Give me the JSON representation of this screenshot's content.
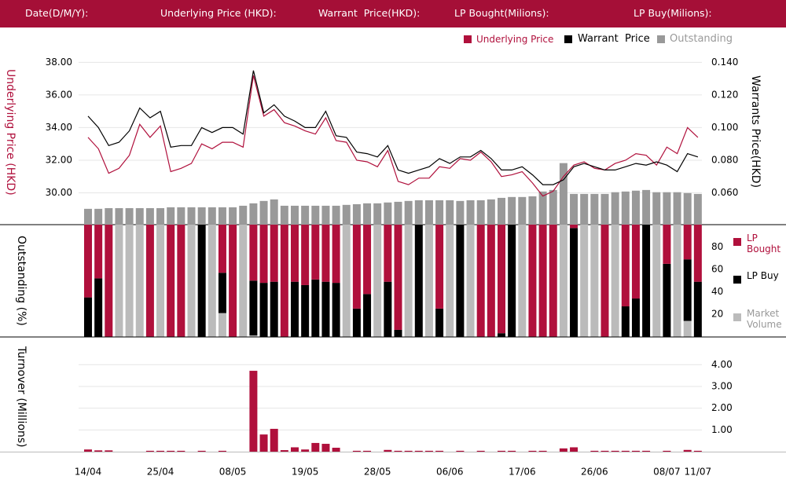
{
  "header": [
    "Date(D/M/Y):",
    "Underlying Price (HKD):",
    "Warrant  Price(HKD):",
    "LP Bought(Milions):",
    "LP Buy(Milions):"
  ],
  "chart_data": [
    {
      "type": "line",
      "ylabel": "Underlying Price (HKD)",
      "y2label": "Warrants  Price(HKD)",
      "grid": true,
      "ylim": [
        28,
        38.5
      ],
      "yticks": [
        {
          "value": 30,
          "label": "30.00"
        },
        {
          "value": 32,
          "label": "32.00"
        },
        {
          "value": 34,
          "label": "34.00"
        },
        {
          "value": 36,
          "label": "36.00"
        },
        {
          "value": 38,
          "label": "38.00"
        }
      ],
      "y2lim": [
        0.04,
        0.145
      ],
      "y2ticks": [
        {
          "value": 0.06,
          "label": "0.060"
        },
        {
          "value": 0.08,
          "label": "0.080"
        },
        {
          "value": 0.1,
          "label": "0.100"
        },
        {
          "value": 0.12,
          "label": "0.120"
        },
        {
          "value": 0.14,
          "label": "0.140"
        }
      ],
      "y3lim": [
        0,
        100
      ],
      "series": [
        {
          "name": "Underlying Price",
          "color": "#b0103c",
          "values": [
            33.4,
            32.7,
            31.2,
            31.5,
            32.3,
            34.2,
            33.4,
            34.1,
            31.3,
            31.5,
            31.8,
            33.0,
            32.7,
            33.1,
            33.1,
            32.8,
            37.2,
            34.7,
            35.1,
            34.3,
            34.1,
            33.8,
            33.6,
            34.6,
            33.2,
            33.1,
            32.0,
            31.9,
            31.6,
            32.6,
            30.7,
            30.5,
            30.9,
            30.9,
            31.6,
            31.5,
            32.1,
            32.0,
            32.5,
            31.9,
            31.0,
            31.1,
            31.3,
            30.6,
            29.8,
            30.1,
            31.0,
            31.7,
            31.9,
            31.5,
            31.4,
            31.8,
            32.0,
            32.4,
            32.3,
            31.7,
            32.8,
            32.4,
            34.0,
            33.4
          ]
        },
        {
          "name": "Warrant  Price",
          "color": "#000000",
          "axis": "y2",
          "values": [
            0.107,
            0.1,
            0.089,
            0.091,
            0.098,
            0.112,
            0.106,
            0.11,
            0.088,
            0.089,
            0.089,
            0.1,
            0.097,
            0.1,
            0.1,
            0.096,
            0.135,
            0.109,
            0.114,
            0.107,
            0.104,
            0.1,
            0.1,
            0.11,
            0.095,
            0.094,
            0.085,
            0.084,
            0.082,
            0.089,
            0.074,
            0.072,
            0.074,
            0.076,
            0.081,
            0.078,
            0.082,
            0.082,
            0.086,
            0.081,
            0.074,
            0.074,
            0.076,
            0.071,
            0.065,
            0.065,
            0.068,
            0.076,
            0.078,
            0.076,
            0.074,
            0.074,
            0.076,
            0.078,
            0.077,
            0.079,
            0.077,
            0.073,
            0.084,
            0.082
          ]
        },
        {
          "name": "Outstanding",
          "color": "#999999",
          "type": "bar",
          "axis": "y3",
          "values": [
            9.7,
            9.7,
            10.1,
            10.1,
            10.1,
            10.1,
            10.1,
            10.1,
            10.6,
            10.6,
            10.6,
            10.6,
            10.6,
            10.6,
            10.6,
            11.5,
            12.9,
            14.3,
            15.2,
            11.5,
            11.5,
            11.5,
            11.5,
            11.5,
            11.5,
            12,
            12.4,
            12.9,
            12.9,
            13.4,
            13.8,
            14.3,
            14.7,
            14.7,
            14.7,
            14.7,
            14.3,
            14.7,
            14.7,
            15.2,
            16.1,
            16.6,
            16.6,
            17,
            19.8,
            20.7,
            36.4,
            18.4,
            18.4,
            18.4,
            18.4,
            19.4,
            19.8,
            20.3,
            20.7,
            19.4,
            19.4,
            19.4,
            18.9,
            18.4
          ]
        }
      ]
    },
    {
      "type": "bar",
      "stacked": true,
      "ylabel": "Outstanding (%)",
      "ylim": [
        0,
        100
      ],
      "yticks": [
        20,
        40,
        60,
        80
      ],
      "series": [
        {
          "name": "LP Bought",
          "color": "#b0103c",
          "values": [
            65,
            48,
            100,
            0,
            0,
            0,
            100,
            0,
            100,
            100,
            0,
            0,
            0,
            43,
            100,
            0,
            50,
            52,
            51,
            100,
            51,
            54,
            49,
            51,
            52,
            0,
            75,
            62,
            0,
            51,
            94,
            0,
            0,
            0,
            75,
            0,
            0,
            0,
            100,
            100,
            97,
            0,
            0,
            100,
            100,
            100,
            0,
            3,
            0,
            0,
            100,
            0,
            73,
            66,
            0,
            0,
            35,
            0,
            31,
            51
          ]
        },
        {
          "name": "LP Buy",
          "color": "#000000",
          "values": [
            35,
            52,
            0,
            0,
            0,
            0,
            0,
            0,
            0,
            0,
            0,
            100,
            0,
            36,
            0,
            0,
            49,
            48,
            49,
            0,
            49,
            46,
            51,
            49,
            48,
            0,
            25,
            38,
            0,
            49,
            6,
            0,
            100,
            0,
            25,
            0,
            100,
            0,
            0,
            0,
            3,
            100,
            0,
            0,
            0,
            0,
            0,
            97,
            0,
            0,
            0,
            0,
            27,
            34,
            100,
            0,
            65,
            0,
            55,
            49
          ]
        },
        {
          "name": "Market Volume",
          "color": "#bbbbbb",
          "values": [
            0,
            0,
            0,
            100,
            100,
            100,
            0,
            100,
            0,
            0,
            100,
            0,
            100,
            21,
            0,
            100,
            1,
            0,
            0,
            0,
            0,
            0,
            0,
            0,
            0,
            100,
            0,
            0,
            100,
            0,
            0,
            100,
            0,
            100,
            0,
            100,
            0,
            100,
            0,
            0,
            0,
            0,
            100,
            0,
            0,
            0,
            100,
            0,
            100,
            100,
            0,
            100,
            0,
            0,
            0,
            100,
            0,
            100,
            14,
            0
          ]
        }
      ]
    },
    {
      "type": "bar",
      "ylabel": "Turnover (Millions)",
      "color": "#b0103c",
      "grid": true,
      "ylim": [
        0,
        4.3
      ],
      "yticks": [
        {
          "value": 1,
          "label": "1.00"
        },
        {
          "value": 2,
          "label": "2.00"
        },
        {
          "value": 3,
          "label": "3.00"
        },
        {
          "value": 4,
          "label": "4.00"
        }
      ],
      "categories": [
        "14/04",
        null,
        null,
        null,
        null,
        null,
        null,
        "25/04",
        null,
        null,
        null,
        null,
        null,
        null,
        "08/05",
        null,
        null,
        null,
        null,
        null,
        null,
        "19/05",
        null,
        null,
        null,
        null,
        null,
        null,
        "28/05",
        null,
        null,
        null,
        null,
        null,
        null,
        "06/06",
        null,
        null,
        null,
        null,
        null,
        null,
        "17/06",
        null,
        null,
        null,
        null,
        null,
        null,
        "26/06",
        null,
        null,
        null,
        null,
        null,
        null,
        "08/07",
        null,
        null,
        "11/07"
      ],
      "values": [
        0.1,
        0.06,
        0.06,
        0,
        0,
        0,
        0.04,
        0.04,
        0.04,
        0.04,
        0,
        0.04,
        0,
        0.04,
        0,
        0,
        3.72,
        0.79,
        1.05,
        0.07,
        0.2,
        0.1,
        0.4,
        0.36,
        0.18,
        0,
        0.04,
        0.04,
        0,
        0.08,
        0.04,
        0.04,
        0.04,
        0.04,
        0.04,
        0,
        0.04,
        0,
        0.04,
        0,
        0.04,
        0.04,
        0,
        0.04,
        0.04,
        0,
        0.15,
        0.2,
        0,
        0.04,
        0.04,
        0.04,
        0.04,
        0.04,
        0.04,
        0,
        0.04,
        0,
        0.08,
        0.04
      ]
    }
  ]
}
